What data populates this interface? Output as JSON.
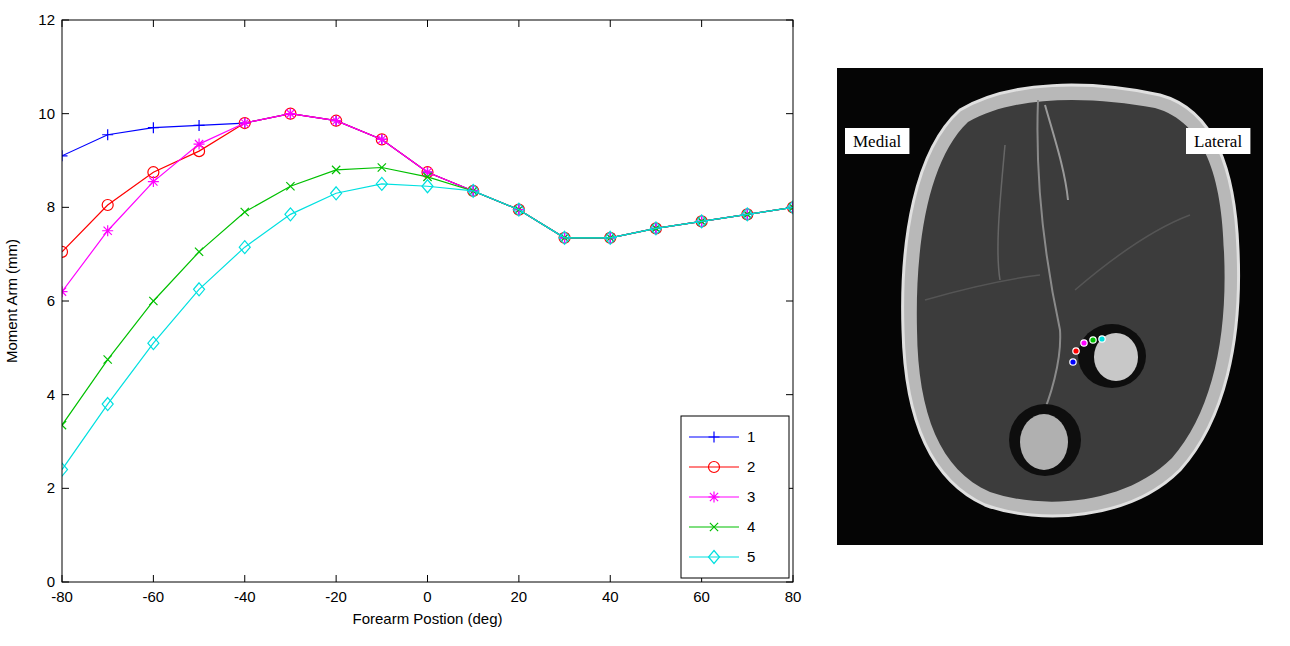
{
  "chart_data": {
    "type": "line",
    "x_label": "Forearm Postion (deg)",
    "y_label": "Moment Arm (mm)",
    "x": [
      -80,
      -70,
      -60,
      -50,
      -40,
      -30,
      -20,
      -10,
      0,
      10,
      20,
      30,
      40,
      50,
      60,
      70,
      80
    ],
    "series": [
      {
        "name": "1",
        "color": "#0000ff",
        "marker": "plus",
        "line_style": "solid",
        "values": [
          9.1,
          9.55,
          9.7,
          9.75,
          9.8,
          10.0,
          9.85,
          9.45,
          8.75,
          8.35,
          7.95,
          7.35,
          7.35,
          7.55,
          7.7,
          7.85,
          8.0
        ]
      },
      {
        "name": "2",
        "color": "#ff0000",
        "marker": "circle",
        "line_style": "solid",
        "values": [
          7.05,
          8.05,
          8.75,
          9.2,
          9.8,
          10.0,
          9.85,
          9.45,
          8.75,
          8.35,
          7.95,
          7.35,
          7.35,
          7.55,
          7.7,
          7.85,
          8.0
        ]
      },
      {
        "name": "3",
        "color": "#ff00ff",
        "marker": "star",
        "line_style": "solid",
        "values": [
          6.2,
          7.5,
          8.55,
          9.35,
          9.8,
          10.0,
          9.85,
          9.45,
          8.75,
          8.35,
          7.95,
          7.35,
          7.35,
          7.55,
          7.7,
          7.85,
          8.0
        ]
      },
      {
        "name": "4",
        "color": "#00c000",
        "marker": "x",
        "line_style": "solid",
        "values": [
          3.35,
          4.75,
          6.0,
          7.05,
          7.9,
          8.45,
          8.8,
          8.85,
          8.65,
          8.35,
          7.95,
          7.35,
          7.35,
          7.55,
          7.7,
          7.85,
          8.0
        ]
      },
      {
        "name": "5",
        "color": "#00e0e0",
        "marker": "diamond",
        "line_style": "solid",
        "values": [
          2.4,
          3.8,
          5.1,
          6.25,
          7.15,
          7.85,
          8.3,
          8.5,
          8.45,
          8.35,
          7.95,
          7.35,
          7.35,
          7.55,
          7.7,
          7.85,
          8.0
        ]
      }
    ],
    "xlim": [
      -80,
      80
    ],
    "xticks": [
      -80,
      -60,
      -40,
      -20,
      0,
      20,
      40,
      60,
      80
    ],
    "ylim": [
      0,
      12
    ],
    "yticks": [
      0,
      2,
      4,
      6,
      8,
      10,
      12
    ],
    "grid": false,
    "legend": "lower right"
  },
  "image_labels": [
    "Medial",
    "Lateral"
  ]
}
